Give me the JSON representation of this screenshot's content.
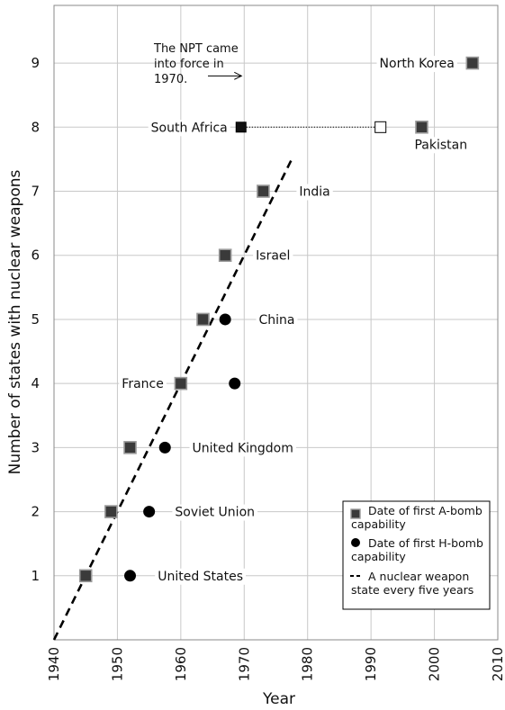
{
  "chart_data": {
    "type": "scatter",
    "title": "",
    "xlabel": "Year",
    "ylabel": "Number of states with nuclear weapons",
    "xlim": [
      1940,
      2010
    ],
    "ylim": [
      0,
      9.9
    ],
    "x_ticks": [
      "1940",
      "1950",
      "1960",
      "1970",
      "1980",
      "1990",
      "2000",
      "2010"
    ],
    "y_ticks": [
      "1",
      "2",
      "3",
      "4",
      "5",
      "6",
      "7",
      "8",
      "9"
    ],
    "grid": true,
    "legend_position": "bottom-right",
    "series": [
      {
        "name": "Date of first A-bomb capability",
        "marker": "square",
        "points": [
          {
            "x": 1945,
            "y": 1,
            "label": "United States"
          },
          {
            "x": 1949,
            "y": 2,
            "label": "Soviet Union"
          },
          {
            "x": 1952,
            "y": 3,
            "label": "United Kingdom"
          },
          {
            "x": 1960,
            "y": 4,
            "label": "France"
          },
          {
            "x": 1963.5,
            "y": 5,
            "label": "China"
          },
          {
            "x": 1967,
            "y": 6,
            "label": "Israel"
          },
          {
            "x": 1973,
            "y": 7,
            "label": "India"
          },
          {
            "x": 1969.5,
            "y": 8,
            "label": "South Africa"
          },
          {
            "x": 1998,
            "y": 8,
            "label": "Pakistan"
          },
          {
            "x": 2006,
            "y": 9,
            "label": "North Korea"
          }
        ]
      },
      {
        "name": "Date of first H-bomb capability",
        "marker": "circle",
        "points": [
          {
            "x": 1952,
            "y": 1
          },
          {
            "x": 1955,
            "y": 2
          },
          {
            "x": 1957.5,
            "y": 3
          },
          {
            "x": 1968.5,
            "y": 4
          },
          {
            "x": 1967,
            "y": 5
          }
        ]
      },
      {
        "name": "A nuclear weapon state every five years",
        "marker": "dashed-line",
        "points": [
          {
            "x": 1940,
            "y": 0
          },
          {
            "x": 1977.5,
            "y": 7.5
          }
        ]
      }
    ],
    "dismantled": {
      "from": {
        "x": 1969.5,
        "y": 8
      },
      "to": {
        "x": 1991.5,
        "y": 8
      }
    },
    "annotation": {
      "lines": [
        "The NPT came",
        "into force in",
        "1970."
      ],
      "arrow_to": {
        "x": 1970,
        "y": 8.8
      }
    },
    "colors": {
      "square_fill": "#3a3a3a",
      "square_edge": "#9a9a9a",
      "dot": "#000000",
      "grid": "#c8c8c8",
      "open_square": "#ffffff"
    }
  }
}
